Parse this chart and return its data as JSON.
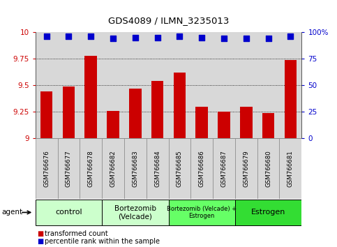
{
  "title": "GDS4089 / ILMN_3235013",
  "samples": [
    "GSM766676",
    "GSM766677",
    "GSM766678",
    "GSM766682",
    "GSM766683",
    "GSM766684",
    "GSM766685",
    "GSM766686",
    "GSM766687",
    "GSM766679",
    "GSM766680",
    "GSM766681"
  ],
  "bar_values": [
    9.44,
    9.49,
    9.78,
    9.26,
    9.47,
    9.54,
    9.62,
    9.3,
    9.25,
    9.3,
    9.24,
    9.74
  ],
  "percentile_values": [
    96,
    96,
    96,
    94,
    95,
    95,
    96,
    95,
    94,
    94,
    94,
    96
  ],
  "bar_color": "#cc0000",
  "percentile_color": "#0000cc",
  "ylim_left": [
    9.0,
    10.0
  ],
  "ylim_right": [
    0,
    100
  ],
  "yticks_left": [
    9.0,
    9.25,
    9.5,
    9.75,
    10.0
  ],
  "yticks_right": [
    0,
    25,
    50,
    75,
    100
  ],
  "groups": [
    {
      "label": "control",
      "start": 0,
      "end": 3,
      "color": "#ccffcc",
      "fontsize": 8
    },
    {
      "label": "Bortezomib\n(Velcade)",
      "start": 3,
      "end": 6,
      "color": "#ccffcc",
      "fontsize": 7.5
    },
    {
      "label": "Bortezomib (Velcade) +\nEstrogen",
      "start": 6,
      "end": 9,
      "color": "#66ff66",
      "fontsize": 6
    },
    {
      "label": "Estrogen",
      "start": 9,
      "end": 12,
      "color": "#33dd33",
      "fontsize": 8
    }
  ],
  "bar_width": 0.55,
  "plot_bg_color": "#d8d8d8",
  "sample_box_color": "#d8d8d8",
  "percentile_marker_size": 6,
  "legend_bar_label": "transformed count",
  "legend_percentile_label": "percentile rank within the sample"
}
